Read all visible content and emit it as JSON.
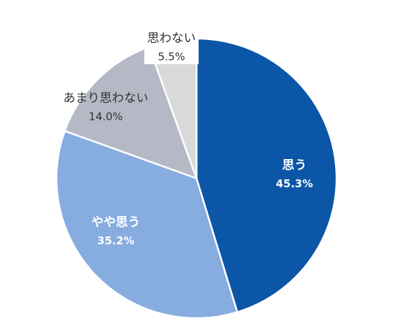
{
  "chart_data": {
    "type": "pie",
    "categories": [
      "思う",
      "やや思う",
      "あまり思わない",
      "思わない"
    ],
    "values": [
      45.3,
      35.2,
      14.0,
      5.5
    ],
    "value_labels": [
      "45.3%",
      "35.2%",
      "14.0%",
      "5.5%"
    ],
    "colors": [
      "#0b56a6",
      "#86ace0",
      "#b4b9c5",
      "#d9d9d9"
    ]
  }
}
